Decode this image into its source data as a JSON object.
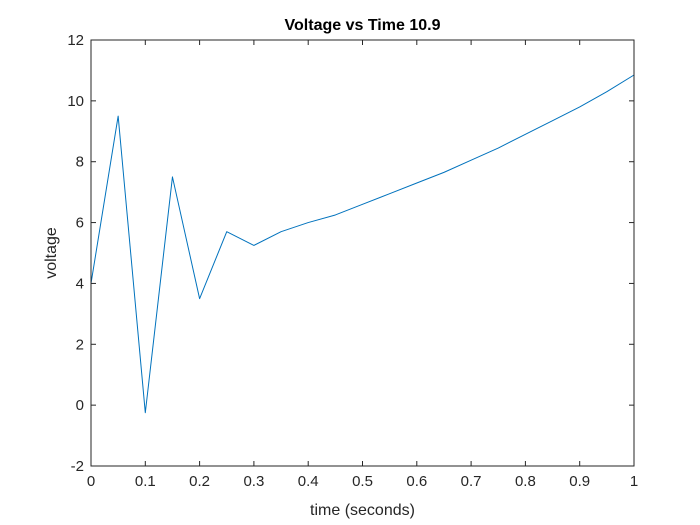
{
  "chart_data": {
    "type": "line",
    "title": "Voltage vs Time 10.9",
    "xlabel": "time (seconds)",
    "ylabel": "voltage",
    "xlim": [
      0,
      1
    ],
    "ylim": [
      -2,
      12
    ],
    "xticks": [
      0,
      0.1,
      0.2,
      0.3,
      0.4,
      0.5,
      0.6,
      0.7,
      0.8,
      0.9,
      1
    ],
    "xtick_labels": [
      "0",
      "0.1",
      "0.2",
      "0.3",
      "0.4",
      "0.5",
      "0.6",
      "0.7",
      "0.8",
      "0.9",
      "1"
    ],
    "yticks": [
      -2,
      0,
      2,
      4,
      6,
      8,
      10,
      12
    ],
    "ytick_labels": [
      "-2",
      "0",
      "2",
      "4",
      "6",
      "8",
      "10",
      "12"
    ],
    "grid": false,
    "legend": false,
    "line_color": "#0072bd",
    "series": [
      {
        "x": [
          0,
          0.05,
          0.1,
          0.15,
          0.2,
          0.25,
          0.3,
          0.35,
          0.4,
          0.45,
          0.5,
          0.55,
          0.6,
          0.65,
          0.7,
          0.75,
          0.8,
          0.85,
          0.9,
          0.95,
          1.0
        ],
        "values": [
          4.0,
          9.5,
          -0.25,
          7.5,
          3.5,
          5.7,
          5.25,
          5.7,
          6.0,
          6.25,
          6.6,
          6.95,
          7.3,
          7.65,
          8.05,
          8.45,
          8.9,
          9.35,
          9.8,
          10.3,
          10.85
        ]
      }
    ]
  }
}
